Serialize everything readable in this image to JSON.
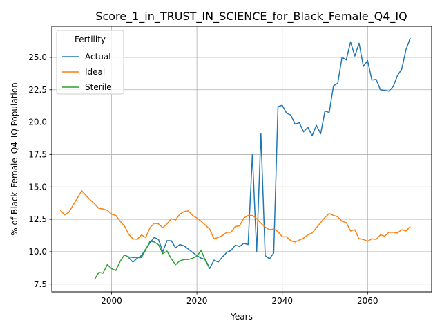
{
  "chart_data": {
    "type": "line",
    "title": "Score_1_in_TRUST_IN_SCIENCE_for_Black_Female_Q4_IQ",
    "xlabel": "Years",
    "ylabel": "% of Black_Female_Q4_IQ Population",
    "xlim": [
      1986,
      2075
    ],
    "ylim": [
      6.9,
      27.4
    ],
    "xticks": [
      2000,
      2020,
      2040,
      2060
    ],
    "xtick_labels": [
      "2000",
      "2020",
      "2040",
      "2060"
    ],
    "yticks": [
      7.5,
      10.0,
      12.5,
      15.0,
      17.5,
      20.0,
      22.5,
      25.0
    ],
    "ytick_labels": [
      "7.5",
      "10.0",
      "12.5",
      "15.0",
      "17.5",
      "20.0",
      "22.5",
      "25.0"
    ],
    "grid": true,
    "legend": {
      "title": "Fertility",
      "position": "top-left"
    },
    "series": [
      {
        "name": "Actual",
        "color": "#1f77b4",
        "x": [
          2004,
          2005,
          2006,
          2007,
          2008,
          2009,
          2010,
          2011,
          2012,
          2013,
          2014,
          2015,
          2016,
          2017,
          2018,
          2019,
          2020,
          2021,
          2022,
          2023,
          2024,
          2025,
          2026,
          2027,
          2028,
          2029,
          2030,
          2031,
          2032,
          2033,
          2034,
          2035,
          2036,
          2037,
          2038,
          2039,
          2040,
          2041,
          2042,
          2043,
          2044,
          2045,
          2046,
          2047,
          2048,
          2049,
          2050,
          2051,
          2052,
          2053,
          2054,
          2055,
          2056,
          2057,
          2058,
          2059,
          2060,
          2061,
          2062,
          2063,
          2064,
          2065,
          2066,
          2067,
          2068,
          2069,
          2070
        ],
        "y": [
          9.55,
          9.2,
          9.5,
          9.7,
          10.2,
          10.7,
          11.1,
          10.95,
          10.0,
          10.85,
          10.85,
          10.3,
          10.55,
          10.45,
          10.2,
          9.95,
          9.7,
          9.5,
          9.4,
          8.7,
          9.35,
          9.2,
          9.6,
          9.95,
          10.1,
          10.5,
          10.4,
          10.65,
          10.55,
          17.5,
          10.0,
          19.1,
          9.7,
          9.45,
          9.9,
          21.2,
          21.3,
          20.7,
          20.55,
          19.85,
          19.95,
          19.25,
          19.6,
          18.95,
          19.75,
          19.1,
          20.85,
          20.75,
          22.8,
          23.0,
          25.0,
          24.8,
          26.2,
          25.1,
          26.1,
          24.3,
          24.75,
          23.25,
          23.3,
          22.5,
          22.45,
          22.4,
          22.75,
          23.6,
          24.1,
          25.6,
          26.5
        ]
      },
      {
        "name": "Ideal",
        "color": "#ff7f0e",
        "x": [
          1988,
          1989,
          1990,
          1991,
          1992,
          1993,
          1994,
          1995,
          1996,
          1997,
          1998,
          1999,
          2000,
          2001,
          2002,
          2003,
          2004,
          2005,
          2006,
          2007,
          2008,
          2009,
          2010,
          2011,
          2012,
          2013,
          2014,
          2015,
          2016,
          2017,
          2018,
          2019,
          2020,
          2021,
          2022,
          2023,
          2024,
          2025,
          2026,
          2027,
          2028,
          2029,
          2030,
          2031,
          2032,
          2033,
          2034,
          2035,
          2036,
          2037,
          2038,
          2039,
          2040,
          2041,
          2042,
          2043,
          2044,
          2045,
          2046,
          2047,
          2048,
          2049,
          2050,
          2051,
          2052,
          2053,
          2054,
          2055,
          2056,
          2057,
          2058,
          2059,
          2060,
          2061,
          2062,
          2063,
          2064,
          2065,
          2066,
          2067,
          2068,
          2069,
          2070
        ],
        "y": [
          13.2,
          12.85,
          13.05,
          13.6,
          14.15,
          14.7,
          14.35,
          14.0,
          13.7,
          13.35,
          13.3,
          13.2,
          12.9,
          12.8,
          12.35,
          12.0,
          11.35,
          11.0,
          10.95,
          11.3,
          11.1,
          11.85,
          12.2,
          12.15,
          11.85,
          12.15,
          12.55,
          12.45,
          12.9,
          13.1,
          13.15,
          12.8,
          12.6,
          12.35,
          12.05,
          11.75,
          11.0,
          11.1,
          11.25,
          11.5,
          11.5,
          11.95,
          12.0,
          12.6,
          12.8,
          12.8,
          12.55,
          12.2,
          11.9,
          11.7,
          11.75,
          11.55,
          11.15,
          11.15,
          10.85,
          10.75,
          10.9,
          11.05,
          11.3,
          11.45,
          11.85,
          12.25,
          12.65,
          12.95,
          12.8,
          12.7,
          12.35,
          12.25,
          11.6,
          11.7,
          11.0,
          10.95,
          10.8,
          11.0,
          10.95,
          11.3,
          11.2,
          11.5,
          11.5,
          11.45,
          11.7,
          11.6,
          11.95
        ]
      },
      {
        "name": "Sterile",
        "color": "#2ca02c",
        "x": [
          1996,
          1997,
          1998,
          1999,
          2000,
          2001,
          2002,
          2003,
          2004,
          2005,
          2006,
          2007,
          2008,
          2009,
          2010,
          2011,
          2012,
          2013,
          2014,
          2015,
          2016,
          2017,
          2018,
          2019,
          2020,
          2021,
          2022,
          2023
        ],
        "y": [
          7.85,
          8.4,
          8.35,
          9.0,
          8.7,
          8.55,
          9.25,
          9.75,
          9.6,
          9.55,
          9.55,
          9.55,
          10.15,
          10.8,
          10.75,
          10.55,
          9.85,
          10.05,
          9.45,
          9.0,
          9.3,
          9.4,
          9.4,
          9.5,
          9.65,
          10.1,
          9.3,
          8.7
        ]
      }
    ]
  }
}
